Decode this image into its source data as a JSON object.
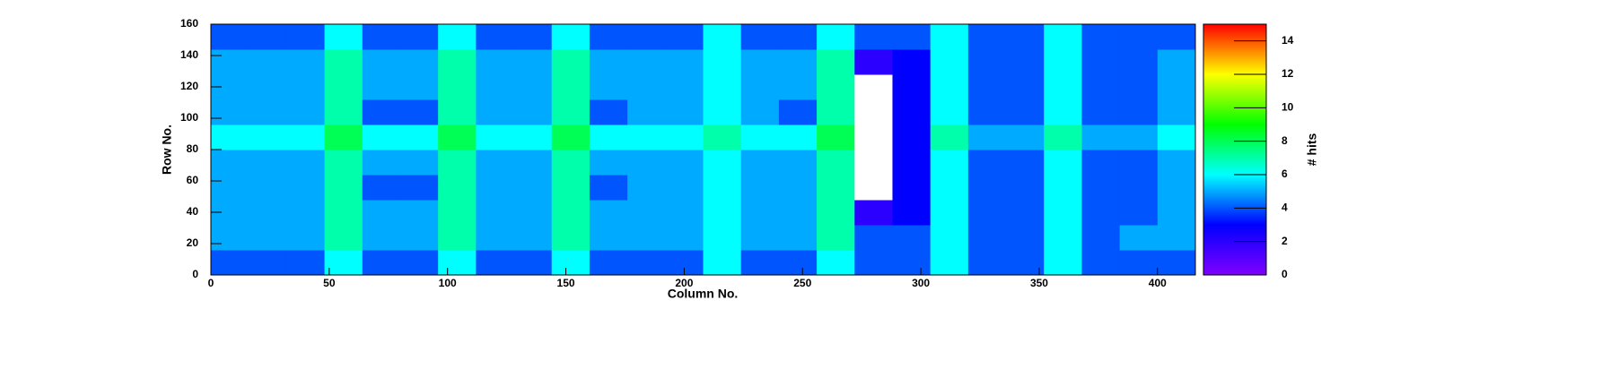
{
  "chart_data": {
    "type": "heatmap",
    "x_label": "Column No.",
    "y_label": "Row No.",
    "z_label": "# hits",
    "x_bins": [
      0,
      16,
      32,
      48,
      64,
      80,
      96,
      112,
      128,
      144,
      160,
      176,
      192,
      208,
      224,
      240,
      256,
      272,
      288,
      304,
      320,
      336,
      352,
      368,
      384,
      400,
      416
    ],
    "y_bins": [
      0,
      16,
      32,
      48,
      64,
      80,
      96,
      112,
      128,
      144,
      160
    ],
    "values": [
      [
        4,
        4,
        4,
        6,
        4,
        4,
        6,
        4,
        4,
        6,
        4,
        4,
        4,
        6,
        4,
        4,
        6,
        4,
        4,
        6,
        4,
        4,
        6,
        4,
        4,
        4
      ],
      [
        5,
        5,
        5,
        7,
        5,
        5,
        7,
        5,
        5,
        7,
        5,
        5,
        5,
        6,
        5,
        5,
        7,
        4,
        4,
        6,
        4,
        4,
        6,
        4,
        5,
        5
      ],
      [
        5,
        5,
        5,
        7,
        5,
        5,
        7,
        5,
        5,
        7,
        5,
        5,
        5,
        6,
        5,
        5,
        7,
        2,
        3,
        6,
        4,
        4,
        6,
        4,
        4,
        5
      ],
      [
        5,
        5,
        5,
        7,
        4,
        4,
        7,
        5,
        5,
        7,
        4,
        5,
        5,
        6,
        5,
        5,
        7,
        0,
        3,
        6,
        4,
        4,
        6,
        4,
        4,
        5
      ],
      [
        5,
        5,
        5,
        7,
        5,
        5,
        7,
        5,
        5,
        7,
        5,
        5,
        5,
        6,
        5,
        5,
        7,
        0,
        3,
        6,
        4,
        4,
        6,
        4,
        4,
        5
      ],
      [
        6,
        6,
        6,
        8,
        6,
        6,
        8,
        6,
        6,
        8,
        6,
        6,
        6,
        7,
        6,
        6,
        8,
        0,
        3,
        7,
        5,
        5,
        7,
        5,
        5,
        6
      ],
      [
        5,
        5,
        5,
        7,
        4,
        4,
        7,
        5,
        5,
        7,
        4,
        5,
        5,
        6,
        5,
        4,
        7,
        0,
        3,
        6,
        4,
        4,
        6,
        4,
        4,
        5
      ],
      [
        5,
        5,
        5,
        7,
        5,
        5,
        7,
        5,
        5,
        7,
        5,
        5,
        5,
        6,
        5,
        5,
        7,
        0,
        3,
        6,
        4,
        4,
        6,
        4,
        4,
        5
      ],
      [
        5,
        5,
        5,
        7,
        5,
        5,
        7,
        5,
        5,
        7,
        5,
        5,
        5,
        6,
        5,
        5,
        7,
        2,
        3,
        6,
        4,
        4,
        6,
        4,
        4,
        5
      ],
      [
        4,
        4,
        4,
        6,
        4,
        4,
        6,
        4,
        4,
        6,
        4,
        4,
        4,
        6,
        4,
        4,
        6,
        4,
        4,
        6,
        4,
        4,
        6,
        4,
        4,
        4
      ]
    ],
    "xlim": [
      0,
      416
    ],
    "xticks": [
      0,
      50,
      100,
      150,
      200,
      250,
      300,
      350,
      400
    ],
    "ylim": [
      0,
      160
    ],
    "yticks": [
      0,
      20,
      40,
      60,
      80,
      100,
      120,
      140,
      160
    ],
    "zlim": [
      0,
      15
    ],
    "zticks": [
      0,
      2,
      4,
      6,
      8,
      10,
      12,
      14
    ],
    "palette": [
      "#8000ff",
      "#0000ff",
      "#00ffff",
      "#00ff00",
      "#ffff00",
      "#ff0000"
    ],
    "zero_color": "#ffffff"
  }
}
